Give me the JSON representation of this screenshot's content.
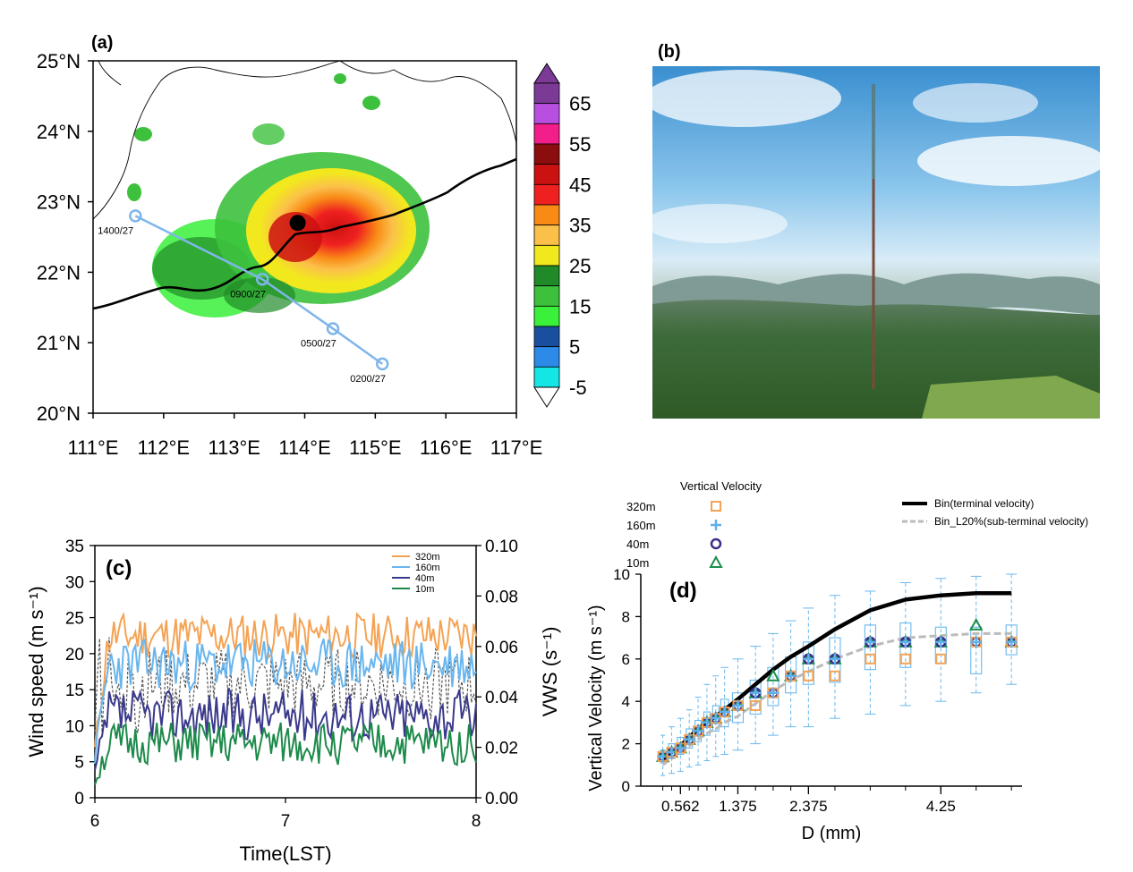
{
  "panels": {
    "a": {
      "label": "(a)"
    },
    "b": {
      "label": "(b)"
    },
    "c": {
      "label": "(c)"
    },
    "d": {
      "label": "(d)"
    }
  },
  "chart_data": [
    {
      "type": "heatmap",
      "panel": "(a)",
      "lat_ticks": [
        "25°N",
        "24°N",
        "23°N",
        "22°N",
        "21°N",
        "20°N"
      ],
      "lat_values": [
        25,
        24,
        23,
        22,
        21,
        20
      ],
      "lon_ticks": [
        "111°E",
        "112°E",
        "113°E",
        "114°E",
        "115°E",
        "116°E",
        "117°E"
      ],
      "lon_values": [
        111,
        112,
        113,
        114,
        115,
        116,
        117
      ],
      "xlim": [
        111,
        117
      ],
      "ylim": [
        20,
        25
      ],
      "colorbar": {
        "labels": [
          "65",
          "55",
          "45",
          "35",
          "25",
          "15",
          "5",
          "-5"
        ],
        "colors": [
          "#7b3a96",
          "#b84fe0",
          "#f21e8a",
          "#8b0d0d",
          "#cc1111",
          "#ef2020",
          "#f98a16",
          "#fbc04a",
          "#f2e81e",
          "#1f8a27",
          "#3dc13d",
          "#3af03a",
          "#1a4fa0",
          "#2c8ae8",
          "#14e6e6"
        ]
      },
      "track": [
        {
          "label": "1400/27",
          "lon": 111.6,
          "lat": 22.8
        },
        {
          "label": "0900/27",
          "lon": 113.4,
          "lat": 21.9
        },
        {
          "label": "0500/27",
          "lon": 114.4,
          "lat": 21.2
        },
        {
          "label": "0200/27",
          "lon": 115.1,
          "lat": 20.7
        }
      ],
      "station": {
        "lon": 113.9,
        "lat": 22.7
      },
      "track_color": "#7fb6ea"
    },
    {
      "type": "line",
      "panel": "(c)",
      "xlabel": "Time(LST)",
      "ylabel": "Wind speed (m s⁻¹)",
      "y2label": "VWS (s⁻¹)",
      "xlim": [
        6,
        8
      ],
      "ylim": [
        0,
        35
      ],
      "y2lim": [
        0,
        0.1
      ],
      "x_ticks": [
        "6",
        "7",
        "8"
      ],
      "y_ticks": [
        "0",
        "5",
        "10",
        "15",
        "20",
        "25",
        "30",
        "35"
      ],
      "y2_ticks": [
        "0.00",
        "0.02",
        "0.04",
        "0.06",
        "0.08",
        "0.10"
      ],
      "series": [
        {
          "name": "320m",
          "color": "#f4a354",
          "mean": 22.5,
          "amp": 3.2,
          "seed": 11
        },
        {
          "name": "160m",
          "color": "#69b6ee",
          "mean": 18.5,
          "amp": 3.6,
          "seed": 23
        },
        {
          "name": "40m",
          "color": "#3a3a8c",
          "mean": 11.5,
          "amp": 3.6,
          "seed": 37
        },
        {
          "name": "10m",
          "color": "#1d8a4a",
          "mean": 7.5,
          "amp": 3.0,
          "seed": 51
        }
      ],
      "vws": {
        "color": "#555555",
        "mean": 0.045,
        "amp": 0.014,
        "seed": 77
      }
    },
    {
      "type": "scatter",
      "panel": "(d)",
      "xlabel": "D (mm)",
      "ylabel": "Vertical Velocity (m s⁻¹)",
      "xlim": [
        0,
        5.4
      ],
      "ylim": [
        0,
        10
      ],
      "x_ticks": [
        "0.562",
        "1.375",
        "2.375",
        "4.25"
      ],
      "x_tick_values": [
        0.562,
        1.375,
        2.375,
        4.25
      ],
      "y_ticks": [
        "0",
        "2",
        "4",
        "6",
        "8",
        "10"
      ],
      "legend_title": "Vertical Velocity",
      "legend_levels": [
        "320m",
        "160m",
        "40m",
        "10m"
      ],
      "curve_legend": [
        "Bin(terminal velocity)",
        "Bin_L20%(sub-terminal velocity)"
      ],
      "D": [
        0.312,
        0.437,
        0.562,
        0.687,
        0.812,
        0.937,
        1.062,
        1.187,
        1.375,
        1.625,
        1.875,
        2.125,
        2.375,
        2.75,
        3.25,
        3.75,
        4.25,
        4.75,
        5.25
      ],
      "terminal": [
        1.2,
        1.6,
        1.9,
        2.3,
        2.7,
        3.0,
        3.3,
        3.6,
        4.1,
        4.8,
        5.5,
        6.1,
        6.6,
        7.4,
        8.3,
        8.8,
        9.0,
        9.1,
        9.1
      ],
      "subterminal": [
        1.0,
        1.3,
        1.6,
        1.9,
        2.2,
        2.5,
        2.7,
        3.0,
        3.3,
        3.9,
        4.5,
        5.0,
        5.4,
        6.0,
        6.6,
        7.0,
        7.1,
        7.2,
        7.2
      ],
      "v320": [
        1.4,
        1.6,
        1.8,
        2.2,
        2.6,
        3.0,
        3.2,
        3.5,
        3.8,
        3.8,
        4.4,
        5.2,
        5.2,
        5.2,
        6.0,
        6.0,
        6.0,
        6.8,
        6.8
      ],
      "v160": [
        1.4,
        1.6,
        1.8,
        2.2,
        2.6,
        3.0,
        3.2,
        3.5,
        3.8,
        4.4,
        4.4,
        5.2,
        6.0,
        6.0,
        6.8,
        6.8,
        6.8,
        6.8,
        6.8
      ],
      "v40": [
        1.4,
        1.6,
        1.8,
        2.2,
        2.6,
        3.0,
        3.2,
        3.5,
        3.8,
        4.4,
        4.4,
        5.2,
        6.0,
        6.0,
        6.8,
        6.8,
        6.8,
        6.8,
        6.8
      ],
      "v10": [
        1.4,
        1.6,
        1.8,
        2.2,
        2.6,
        3.0,
        3.2,
        3.5,
        3.8,
        4.4,
        5.2,
        5.2,
        6.0,
        6.0,
        6.8,
        6.8,
        6.8,
        7.6,
        6.8
      ],
      "box_q1": [
        1.1,
        1.3,
        1.5,
        1.8,
        2.1,
        2.4,
        2.6,
        2.8,
        3.0,
        3.4,
        3.8,
        4.4,
        4.8,
        4.9,
        5.5,
        5.6,
        5.8,
        5.3,
        6.2
      ],
      "box_q3": [
        1.7,
        2.0,
        2.3,
        2.7,
        3.1,
        3.5,
        3.8,
        4.1,
        4.4,
        5.0,
        5.6,
        6.1,
        6.8,
        7.0,
        7.6,
        7.7,
        7.5,
        7.5,
        7.6
      ],
      "whisk_lo": [
        0.5,
        0.6,
        0.7,
        0.9,
        1.0,
        1.2,
        1.4,
        1.5,
        1.7,
        2.0,
        2.4,
        2.8,
        2.8,
        3.2,
        3.4,
        3.8,
        4.0,
        4.4,
        4.8
      ],
      "whisk_hi": [
        2.4,
        2.8,
        3.2,
        3.6,
        4.2,
        4.8,
        5.2,
        5.6,
        6.0,
        6.6,
        7.2,
        7.8,
        8.4,
        9.0,
        9.2,
        9.6,
        9.8,
        9.9,
        10.0
      ],
      "colors": {
        "v320": "#f4a354",
        "v160": "#5fb0ee",
        "v40": "#3b2d86",
        "v10": "#1d8f4a",
        "terminal": "#000000",
        "subterminal": "#bbbbbb",
        "box": "#6ab8ee"
      }
    }
  ]
}
